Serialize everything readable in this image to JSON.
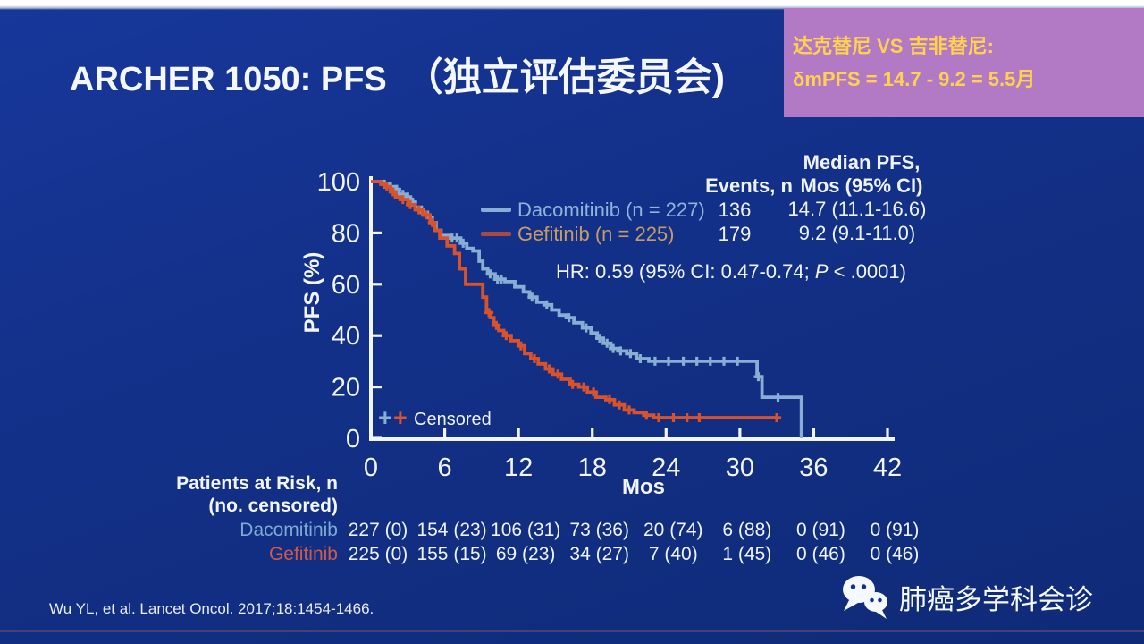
{
  "slide": {
    "title_en": "ARCHER 1050: PFS",
    "title_zh": "（独立评估委员会)",
    "background_color": "#13318a",
    "footer_citation": "Wu YL, et al. Lancet Oncol. 2017;18:1454-1466.",
    "watermark_label": "肺癌多学科会诊"
  },
  "callout": {
    "line1": "达克替尼 VS 吉非替尼:",
    "line2": "δmPFS = 14.7 - 9.2 = 5.5月",
    "bg_color": "#b27ac5",
    "text_color": "#ffd14e"
  },
  "stats": {
    "events_header": "Events, n",
    "median_header_line1": "Median PFS,",
    "median_header_line2": "Mos (95% CI)",
    "rows": [
      {
        "label": "Dacomitinib (n = 227)",
        "events": "136",
        "median": "14.7 (11.1-16.6)",
        "label_color": "#8db4da",
        "swatch_color": "#88aed3"
      },
      {
        "label": "Gefitinib (n = 225)",
        "events": "179",
        "median": "9.2 (9.1-11.0)",
        "label_color": "#c69c64",
        "swatch_color": "#a84a3e"
      }
    ],
    "hr_prefix": "HR: 0.59 (95% CI: 0.47-0.74; ",
    "hr_italic": "P",
    "hr_suffix": " < .0001)",
    "censored_label": "Censored"
  },
  "chart_data": {
    "type": "line",
    "subtype": "kaplan-meier-step",
    "title": "ARCHER 1050: PFS (independent review committee)",
    "xlabel": "Mos",
    "ylabel": "PFS (%)",
    "xlim": [
      0,
      42
    ],
    "ylim": [
      0,
      100
    ],
    "xticks": [
      0,
      6,
      12,
      18,
      24,
      30,
      36,
      42
    ],
    "yticks": [
      0,
      20,
      40,
      60,
      80,
      100
    ],
    "grid": false,
    "axis_color": "#f2f5fb",
    "hazard_ratio_annotation": "HR: 0.59 (95% CI: 0.47-0.74; P < .0001)",
    "series": [
      {
        "name": "Dacomitinib (n = 227)",
        "color": "#88aed3",
        "events_n": 136,
        "median_pfs_mos": "14.7 (11.1-16.6)",
        "steps": [
          [
            0,
            100
          ],
          [
            0.9,
            99
          ],
          [
            1.4,
            98
          ],
          [
            1.9,
            97
          ],
          [
            2.3,
            95
          ],
          [
            2.8,
            94
          ],
          [
            3.2,
            92
          ],
          [
            3.6,
            90
          ],
          [
            4.1,
            88
          ],
          [
            4.6,
            86
          ],
          [
            5.0,
            84
          ],
          [
            5.3,
            81
          ],
          [
            5.7,
            79
          ],
          [
            6.4,
            78
          ],
          [
            7.3,
            76
          ],
          [
            7.8,
            74
          ],
          [
            8.3,
            73
          ],
          [
            8.8,
            69
          ],
          [
            9.1,
            66
          ],
          [
            9.5,
            64
          ],
          [
            10.1,
            62
          ],
          [
            10.9,
            61
          ],
          [
            11.7,
            59
          ],
          [
            12.4,
            57
          ],
          [
            12.9,
            55
          ],
          [
            13.5,
            53
          ],
          [
            14.1,
            52
          ],
          [
            14.7,
            50
          ],
          [
            15.3,
            48
          ],
          [
            15.9,
            47
          ],
          [
            16.5,
            45
          ],
          [
            17.2,
            43
          ],
          [
            17.9,
            41
          ],
          [
            18.4,
            39
          ],
          [
            18.9,
            37
          ],
          [
            19.5,
            35
          ],
          [
            20.1,
            34
          ],
          [
            20.8,
            33
          ],
          [
            21.6,
            31
          ],
          [
            22.6,
            30
          ],
          [
            31.1,
            30
          ],
          [
            31.4,
            24
          ],
          [
            31.8,
            16
          ],
          [
            34.9,
            16
          ],
          [
            35,
            0
          ]
        ],
        "censor_months": [
          1.1,
          1.6,
          2.1,
          2.6,
          3.0,
          3.4,
          4.3,
          6.6,
          7.0,
          7.5,
          9.7,
          10.3,
          10.6,
          13.1,
          14.3,
          16.1,
          17.5,
          18.6,
          19.2,
          19.7,
          20.3,
          21.1,
          21.9,
          23.1,
          24.2,
          25.4,
          26.5,
          27.6,
          28.7,
          29.8,
          31.5,
          33.1
        ]
      },
      {
        "name": "Gefitinib (n = 225)",
        "color": "#d8532c",
        "events_n": 179,
        "median_pfs_mos": "9.2 (9.1-11.0)",
        "steps": [
          [
            0,
            100
          ],
          [
            0.8,
            99
          ],
          [
            1.2,
            98
          ],
          [
            1.6,
            96
          ],
          [
            2.0,
            94
          ],
          [
            2.4,
            93
          ],
          [
            3.0,
            91
          ],
          [
            3.6,
            89
          ],
          [
            4.2,
            87
          ],
          [
            4.8,
            84
          ],
          [
            5.2,
            81
          ],
          [
            5.6,
            78
          ],
          [
            6.2,
            75
          ],
          [
            6.8,
            72
          ],
          [
            7.2,
            66
          ],
          [
            7.7,
            60
          ],
          [
            9.1,
            55
          ],
          [
            9.4,
            49
          ],
          [
            9.7,
            47
          ],
          [
            10.0,
            44
          ],
          [
            10.4,
            42
          ],
          [
            10.8,
            40
          ],
          [
            11.4,
            38
          ],
          [
            12.0,
            36
          ],
          [
            12.5,
            33
          ],
          [
            13.0,
            31
          ],
          [
            13.6,
            29
          ],
          [
            14.2,
            27
          ],
          [
            14.8,
            25
          ],
          [
            15.5,
            23
          ],
          [
            16.2,
            21
          ],
          [
            16.9,
            20
          ],
          [
            17.6,
            18
          ],
          [
            18.3,
            16
          ],
          [
            19.1,
            15
          ],
          [
            19.8,
            13
          ],
          [
            20.6,
            11
          ],
          [
            21.4,
            10
          ],
          [
            22.2,
            9
          ],
          [
            23.0,
            8
          ],
          [
            33,
            8
          ]
        ],
        "censor_months": [
          1.3,
          1.8,
          2.6,
          3.2,
          3.9,
          4.5,
          5.0,
          9.6,
          10.2,
          11.0,
          12.2,
          13.3,
          14.5,
          15.2,
          16.4,
          17.3,
          18.1,
          19.4,
          20.2,
          21.0,
          22.4,
          23.4,
          24.6,
          25.7,
          26.7,
          33.0
        ]
      }
    ]
  },
  "risk_table": {
    "header_line1": "Patients at Risk, n",
    "header_line2": "(no. censored)",
    "months": [
      0,
      6,
      12,
      18,
      24,
      30,
      36,
      42
    ],
    "rows": [
      {
        "label": "Dacomitinib",
        "color": "#7fa8d4",
        "values": [
          "227 (0)",
          "154 (23)",
          "106 (31)",
          "73 (36)",
          "20 (74)",
          "6 (88)",
          "0 (91)",
          "0 (91)"
        ]
      },
      {
        "label": "Gefitinib",
        "color": "#d05a48",
        "values": [
          "225 (0)",
          "155 (15)",
          "69 (23)",
          "34 (27)",
          "7 (40)",
          "1 (45)",
          "0 (46)",
          "0 (46)"
        ]
      }
    ]
  }
}
